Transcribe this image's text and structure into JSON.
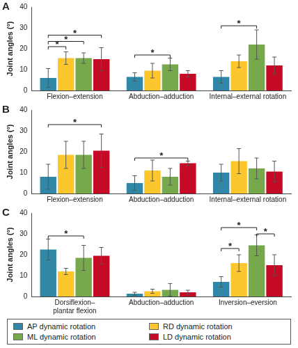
{
  "chart_data": [
    {
      "type": "bar",
      "title": "A",
      "ylabel": "Joint angles (°)",
      "grid": false,
      "categories": [
        "Flexion–extension",
        "Abduction–adduction",
        "Internal–external rotation"
      ],
      "series": [
        {
          "name": "AP dynamic rotation",
          "color": "#3088a6",
          "values": [
            6,
            6.5,
            6.5
          ],
          "errors": [
            4.5,
            2,
            3
          ]
        },
        {
          "name": "RD dynamic rotation",
          "color": "#fcc62d",
          "values": [
            15.5,
            9.5,
            14
          ],
          "errors": [
            3,
            3.5,
            3
          ]
        },
        {
          "name": "ML dynamic rotation",
          "color": "#76a84c",
          "values": [
            15.5,
            12.5,
            22
          ],
          "errors": [
            2.5,
            3,
            7
          ]
        },
        {
          "name": "LD dynamic rotation",
          "color": "#c40a24",
          "values": [
            15,
            8,
            12
          ],
          "errors": [
            5.5,
            1.5,
            4
          ]
        }
      ],
      "ylim": [
        0,
        40
      ],
      "yticks": [
        0,
        10,
        20,
        30,
        40
      ],
      "annotations": [
        {
          "category": 0,
          "from": 0,
          "to": 1,
          "y": 21,
          "label": "*"
        },
        {
          "category": 0,
          "from": 0,
          "to": 2,
          "y": 23.5,
          "label": "*"
        },
        {
          "category": 0,
          "from": 0,
          "to": 3,
          "y": 26.5,
          "label": "*"
        },
        {
          "category": 1,
          "from": 0,
          "to": 2,
          "y": 17,
          "label": "*"
        },
        {
          "category": 2,
          "from": 0,
          "to": 2,
          "y": 31,
          "label": "*"
        }
      ]
    },
    {
      "type": "bar",
      "title": "B",
      "ylabel": "Joint angles (°)",
      "grid": false,
      "categories": [
        "Flexion–extension",
        "Abduction–adduction",
        "Internal–external rotation"
      ],
      "series": [
        {
          "name": "AP dynamic rotation",
          "color": "#3088a6",
          "values": [
            8,
            5,
            10
          ],
          "errors": [
            6,
            3.5,
            4
          ]
        },
        {
          "name": "RD dynamic rotation",
          "color": "#fcc62d",
          "values": [
            18.5,
            11,
            15.5
          ],
          "errors": [
            6.5,
            5,
            6
          ]
        },
        {
          "name": "ML dynamic rotation",
          "color": "#76a84c",
          "values": [
            18.5,
            8,
            12
          ],
          "errors": [
            6.5,
            4,
            5
          ]
        },
        {
          "name": "LD dynamic rotation",
          "color": "#c40a24",
          "values": [
            20.5,
            14.5,
            10.5
          ],
          "errors": [
            8,
            1,
            5
          ]
        }
      ],
      "ylim": [
        0,
        40
      ],
      "yticks": [
        0,
        10,
        20,
        30,
        40
      ],
      "annotations": [
        {
          "category": 0,
          "from": 0,
          "to": 3,
          "y": 33,
          "label": "*"
        },
        {
          "category": 1,
          "from": 0,
          "to": 3,
          "y": 17,
          "label": "*"
        }
      ]
    },
    {
      "type": "bar",
      "title": "C",
      "ylabel": "Joint angles (°)",
      "grid": false,
      "legend": "bottom",
      "categories": [
        "Dorsiflexion–plantar flexion",
        "Abduction–adduction",
        "Inversion–eversion"
      ],
      "series": [
        {
          "name": "AP dynamic rotation",
          "color": "#3088a6",
          "values": [
            22.5,
            1.3,
            7
          ],
          "errors": [
            5,
            0.7,
            2.5
          ]
        },
        {
          "name": "RD dynamic rotation",
          "color": "#fcc62d",
          "values": [
            12,
            2.5,
            16
          ],
          "errors": [
            1.5,
            1,
            4
          ]
        },
        {
          "name": "ML dynamic rotation",
          "color": "#76a84c",
          "values": [
            18.5,
            3.2,
            24.5
          ],
          "errors": [
            6,
            3,
            5
          ]
        },
        {
          "name": "LD dynamic rotation",
          "color": "#c40a24",
          "values": [
            19.5,
            2,
            15
          ],
          "errors": [
            4,
            1,
            5
          ]
        }
      ],
      "ylim": [
        0,
        40
      ],
      "yticks": [
        0,
        10,
        20,
        30,
        40
      ],
      "annotations": [
        {
          "category": 0,
          "from": 0,
          "to": 2,
          "y": 29,
          "label": "*"
        },
        {
          "category": 2,
          "from": 0,
          "to": 1,
          "y": 23,
          "label": "*"
        },
        {
          "category": 2,
          "from": 0,
          "to": 2,
          "y": 33,
          "label": "*"
        },
        {
          "category": 2,
          "from": 2,
          "to": 3,
          "y": 30,
          "label": "*"
        }
      ]
    }
  ]
}
